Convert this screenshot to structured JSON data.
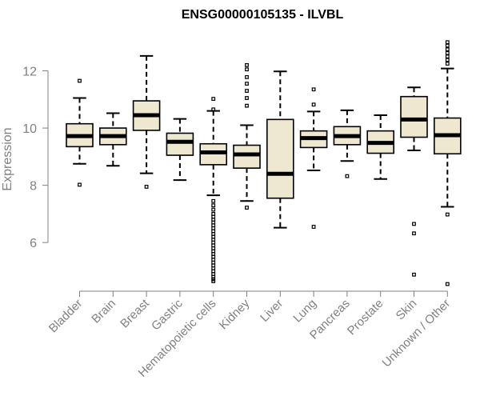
{
  "chart_data": {
    "type": "boxplot",
    "title": "ENSG00000105135 - ILVBL",
    "xlabel": "",
    "ylabel": "Expression",
    "ylim": [
      4.3,
      13.3
    ],
    "yticks": [
      6,
      8,
      10,
      12
    ],
    "box_fill": "#efe8d0",
    "box_stroke": "#000000",
    "axis_color": "#808080",
    "categories": [
      "Bladder",
      "Brain",
      "Breast",
      "Gastric",
      "Hematopoietic cells",
      "Kidney",
      "Liver",
      "Lung",
      "Pancreas",
      "Prostate",
      "Skin",
      "Unknown / Other"
    ],
    "boxes": [
      {
        "low": 8.75,
        "q1": 9.35,
        "median": 9.72,
        "q3": 10.15,
        "high": 11.05,
        "outliers": [
          11.65,
          8.02
        ]
      },
      {
        "low": 8.68,
        "q1": 9.42,
        "median": 9.72,
        "q3": 10.0,
        "high": 10.52,
        "outliers": []
      },
      {
        "low": 8.42,
        "q1": 9.92,
        "median": 10.45,
        "q3": 10.95,
        "high": 12.52,
        "outliers": [
          7.95
        ]
      },
      {
        "low": 8.18,
        "q1": 9.05,
        "median": 9.52,
        "q3": 9.82,
        "high": 10.32,
        "outliers": []
      },
      {
        "low": 7.65,
        "q1": 8.72,
        "median": 9.15,
        "q3": 9.45,
        "high": 10.6,
        "outliers": [
          11.02,
          10.65,
          7.45,
          7.3,
          7.15,
          7.0,
          6.9,
          6.8,
          6.7,
          6.6,
          6.5,
          6.4,
          6.3,
          6.2,
          6.1,
          6.0,
          5.9,
          5.8,
          5.7,
          5.6,
          5.5,
          5.4,
          5.3,
          5.2,
          5.1,
          5.0,
          4.9,
          4.8,
          4.72,
          4.65
        ]
      },
      {
        "low": 7.45,
        "q1": 8.6,
        "median": 9.08,
        "q3": 9.4,
        "high": 10.1,
        "outliers": [
          12.2,
          12.05,
          11.78,
          11.55,
          11.3,
          11.05,
          10.78,
          7.22
        ]
      },
      {
        "low": 6.52,
        "q1": 7.55,
        "median": 8.4,
        "q3": 10.3,
        "high": 11.98,
        "outliers": []
      },
      {
        "low": 8.52,
        "q1": 9.32,
        "median": 9.65,
        "q3": 9.9,
        "high": 10.58,
        "outliers": [
          11.35,
          10.82,
          6.55
        ]
      },
      {
        "low": 8.85,
        "q1": 9.42,
        "median": 9.72,
        "q3": 10.05,
        "high": 10.62,
        "outliers": [
          8.32
        ]
      },
      {
        "low": 8.22,
        "q1": 9.12,
        "median": 9.48,
        "q3": 9.9,
        "high": 10.45,
        "outliers": []
      },
      {
        "low": 9.22,
        "q1": 9.68,
        "median": 10.3,
        "q3": 11.1,
        "high": 11.42,
        "outliers": [
          6.65,
          6.32,
          4.88
        ]
      },
      {
        "low": 7.25,
        "q1": 9.1,
        "median": 9.75,
        "q3": 10.35,
        "high": 12.08,
        "outliers": [
          13.0,
          12.88,
          12.75,
          12.62,
          12.5,
          12.38,
          12.25,
          6.98,
          4.55
        ]
      }
    ]
  }
}
